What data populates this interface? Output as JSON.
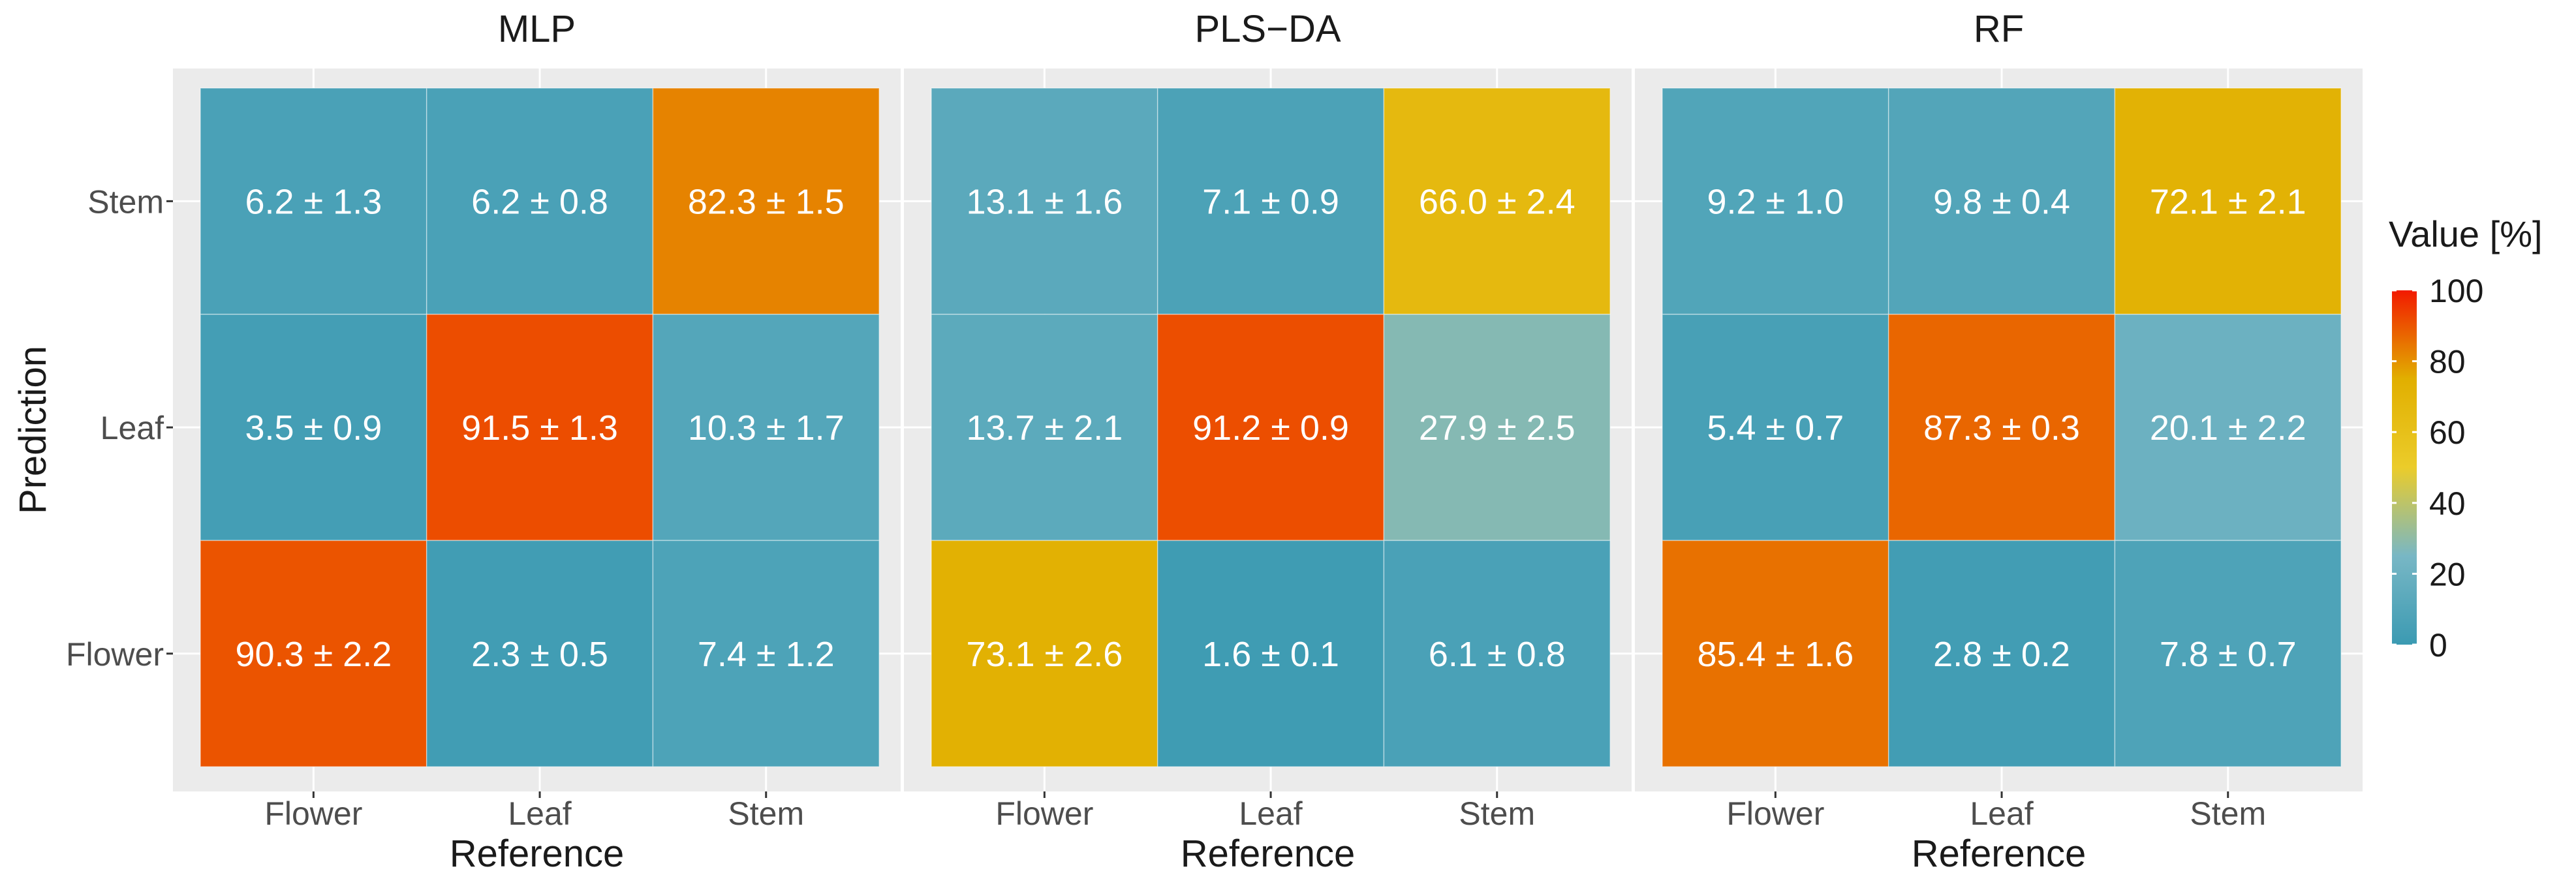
{
  "chart_data": {
    "type": "heatmap",
    "facets": [
      "MLP",
      "PLS−DA",
      "RF"
    ],
    "x_categories": [
      "Flower",
      "Leaf",
      "Stem"
    ],
    "y_categories": [
      "Flower",
      "Leaf",
      "Stem"
    ],
    "xlabel": "Reference",
    "ylabel": "Prediction",
    "panels": [
      {
        "name": "MLP",
        "cells": [
          {
            "reference": "Flower",
            "prediction": "Stem",
            "value": 6.2,
            "label": "6.2 ± 1.3"
          },
          {
            "reference": "Leaf",
            "prediction": "Stem",
            "value": 6.2,
            "label": "6.2 ± 0.8"
          },
          {
            "reference": "Stem",
            "prediction": "Stem",
            "value": 82.3,
            "label": "82.3 ± 1.5"
          },
          {
            "reference": "Flower",
            "prediction": "Leaf",
            "value": 3.5,
            "label": "3.5 ± 0.9"
          },
          {
            "reference": "Leaf",
            "prediction": "Leaf",
            "value": 91.5,
            "label": "91.5 ± 1.3"
          },
          {
            "reference": "Stem",
            "prediction": "Leaf",
            "value": 10.3,
            "label": "10.3 ± 1.7"
          },
          {
            "reference": "Flower",
            "prediction": "Flower",
            "value": 90.3,
            "label": "90.3 ± 2.2"
          },
          {
            "reference": "Leaf",
            "prediction": "Flower",
            "value": 2.3,
            "label": "2.3 ± 0.5"
          },
          {
            "reference": "Stem",
            "prediction": "Flower",
            "value": 7.4,
            "label": "7.4 ± 1.2"
          }
        ]
      },
      {
        "name": "PLS−DA",
        "cells": [
          {
            "reference": "Flower",
            "prediction": "Stem",
            "value": 13.1,
            "label": "13.1 ± 1.6"
          },
          {
            "reference": "Leaf",
            "prediction": "Stem",
            "value": 7.1,
            "label": "7.1 ± 0.9"
          },
          {
            "reference": "Stem",
            "prediction": "Stem",
            "value": 66.0,
            "label": "66.0 ± 2.4"
          },
          {
            "reference": "Flower",
            "prediction": "Leaf",
            "value": 13.7,
            "label": "13.7 ± 2.1"
          },
          {
            "reference": "Leaf",
            "prediction": "Leaf",
            "value": 91.2,
            "label": "91.2 ± 0.9"
          },
          {
            "reference": "Stem",
            "prediction": "Leaf",
            "value": 27.9,
            "label": "27.9 ± 2.5"
          },
          {
            "reference": "Flower",
            "prediction": "Flower",
            "value": 73.1,
            "label": "73.1 ± 2.6"
          },
          {
            "reference": "Leaf",
            "prediction": "Flower",
            "value": 1.6,
            "label": "1.6 ± 0.1"
          },
          {
            "reference": "Stem",
            "prediction": "Flower",
            "value": 6.1,
            "label": "6.1 ± 0.8"
          }
        ]
      },
      {
        "name": "RF",
        "cells": [
          {
            "reference": "Flower",
            "prediction": "Stem",
            "value": 9.2,
            "label": "9.2 ± 1.0"
          },
          {
            "reference": "Leaf",
            "prediction": "Stem",
            "value": 9.8,
            "label": "9.8 ± 0.4"
          },
          {
            "reference": "Stem",
            "prediction": "Stem",
            "value": 72.1,
            "label": "72.1 ± 2.1"
          },
          {
            "reference": "Flower",
            "prediction": "Leaf",
            "value": 5.4,
            "label": "5.4 ± 0.7"
          },
          {
            "reference": "Leaf",
            "prediction": "Leaf",
            "value": 87.3,
            "label": "87.3 ± 0.3"
          },
          {
            "reference": "Stem",
            "prediction": "Leaf",
            "value": 20.1,
            "label": "20.1 ± 2.2"
          },
          {
            "reference": "Flower",
            "prediction": "Flower",
            "value": 85.4,
            "label": "85.4 ± 1.6"
          },
          {
            "reference": "Leaf",
            "prediction": "Flower",
            "value": 2.8,
            "label": "2.8 ± 0.2"
          },
          {
            "reference": "Stem",
            "prediction": "Flower",
            "value": 7.8,
            "label": "7.8 ± 0.7"
          }
        ]
      }
    ],
    "legend": {
      "title": "Value [%]",
      "ticks": [
        0,
        20,
        40,
        60,
        80,
        100
      ],
      "range": [
        0,
        100
      ],
      "position": "right"
    },
    "color_scale": [
      {
        "value": 0,
        "color": "#3b9ab2"
      },
      {
        "value": 25,
        "color": "#78b7c5"
      },
      {
        "value": 50,
        "color": "#ebcc2a"
      },
      {
        "value": 75,
        "color": "#e1af00"
      },
      {
        "value": 100,
        "color": "#f21a00"
      }
    ],
    "panel_background": "#ebebeb",
    "gridline_color": "#ffffff",
    "cell_text_color": "#ffffff"
  }
}
